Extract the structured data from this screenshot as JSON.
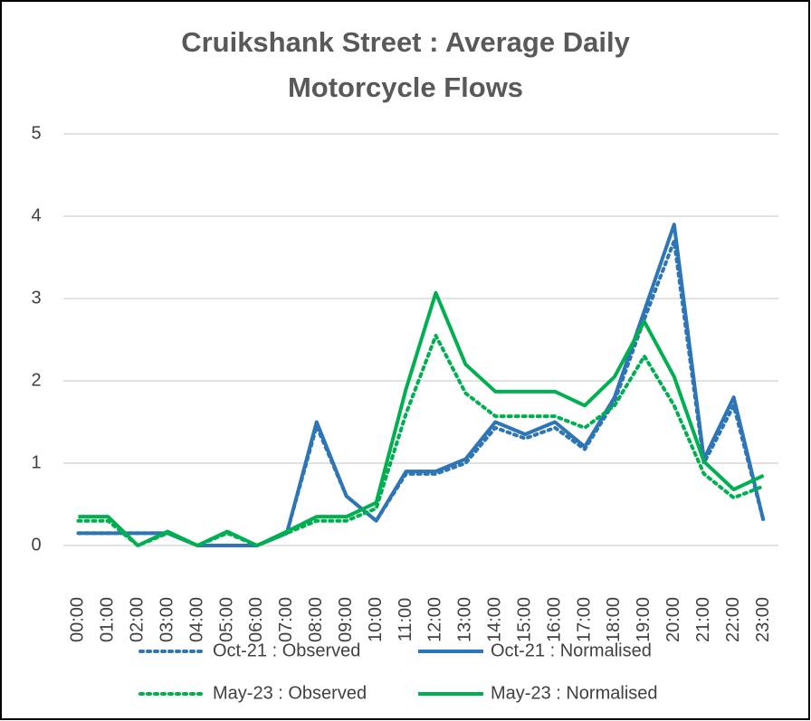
{
  "chart_data": {
    "type": "line",
    "title": "Cruikshank Street : Average Daily Motorcycle Flows",
    "categories": [
      "00:00",
      "01:00",
      "02:00",
      "03:00",
      "04:00",
      "05:00",
      "06:00",
      "07:00",
      "08:00",
      "09:00",
      "10:00",
      "11:00",
      "12:00",
      "13:00",
      "14:00",
      "15:00",
      "16:00",
      "17:00",
      "18:00",
      "19:00",
      "20:00",
      "21:00",
      "22:00",
      "23:00"
    ],
    "series": [
      {
        "name": "Oct-21 : Observed",
        "color": "#2e75b6",
        "line_style": "dotted",
        "values": [
          0.15,
          0.15,
          0.15,
          0.15,
          0,
          0,
          0,
          0.15,
          1.45,
          0.6,
          0.3,
          0.87,
          0.87,
          1.0,
          1.43,
          1.3,
          1.43,
          1.17,
          1.75,
          2.75,
          3.7,
          1.0,
          1.7,
          0.3
        ]
      },
      {
        "name": "Oct-21 : Normalised",
        "color": "#2e75b6",
        "line_style": "solid",
        "values": [
          0.15,
          0.15,
          0.15,
          0.15,
          0,
          0,
          0,
          0.15,
          1.5,
          0.6,
          0.3,
          0.9,
          0.9,
          1.05,
          1.5,
          1.35,
          1.5,
          1.2,
          1.8,
          2.85,
          3.9,
          1.05,
          1.8,
          0.3
        ]
      },
      {
        "name": "May-23 : Observed",
        "color": "#00b050",
        "line_style": "dotted",
        "values": [
          0.3,
          0.3,
          0,
          0.15,
          0,
          0.15,
          0,
          0.15,
          0.3,
          0.3,
          0.45,
          1.6,
          2.55,
          1.85,
          1.57,
          1.57,
          1.57,
          1.43,
          1.7,
          2.3,
          1.7,
          0.87,
          0.58,
          0.72
        ]
      },
      {
        "name": "May-23 : Normalised",
        "color": "#00b050",
        "line_style": "solid",
        "values": [
          0.35,
          0.35,
          0,
          0.17,
          0,
          0.17,
          0,
          0.17,
          0.35,
          0.35,
          0.52,
          1.9,
          3.07,
          2.2,
          1.87,
          1.87,
          1.87,
          1.7,
          2.05,
          2.72,
          2.05,
          1.02,
          0.68,
          0.85
        ]
      }
    ],
    "ylim": [
      0,
      5
    ],
    "yticks": [
      0,
      1,
      2,
      3,
      4,
      5
    ],
    "grid": true,
    "legend": "bottom"
  }
}
